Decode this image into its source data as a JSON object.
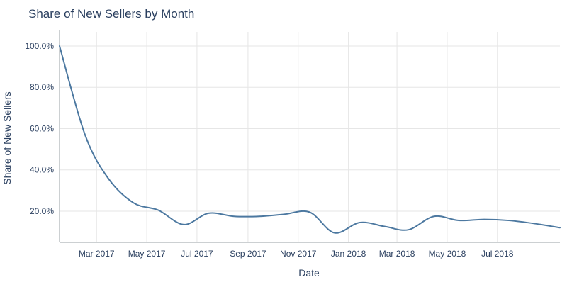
{
  "chart_data": {
    "type": "line",
    "title": "Share of New Sellers by Month",
    "xlabel": "Date",
    "ylabel": "Share of New Sellers",
    "x_ticks": [
      "Mar 2017",
      "May 2017",
      "Jul 2017",
      "Sep 2017",
      "Nov 2017",
      "Jan 2018",
      "Mar 2018",
      "May 2018",
      "Jul 2018"
    ],
    "y_ticks": [
      "20.0%",
      "40.0%",
      "60.0%",
      "80.0%",
      "100.0%"
    ],
    "grid": true,
    "series_color": "#4c78a0",
    "series": [
      {
        "x": [
          "2017-01-15",
          "2017-02-15",
          "2017-03-15",
          "2017-04-15",
          "2017-05-15",
          "2017-06-15",
          "2017-07-15",
          "2017-08-15",
          "2017-09-15",
          "2017-10-15",
          "2017-11-15",
          "2017-12-15",
          "2018-01-15",
          "2018-02-15",
          "2018-03-15",
          "2018-04-15",
          "2018-05-15",
          "2018-06-15",
          "2018-07-15",
          "2018-08-15",
          "2018-09-15"
        ],
        "values": [
          100.0,
          57.0,
          36.0,
          24.0,
          20.5,
          13.5,
          19.0,
          17.5,
          17.5,
          18.5,
          19.5,
          9.5,
          14.5,
          12.5,
          11.0,
          17.5,
          15.5,
          16.0,
          15.5,
          14.0,
          12.0
        ]
      }
    ]
  }
}
